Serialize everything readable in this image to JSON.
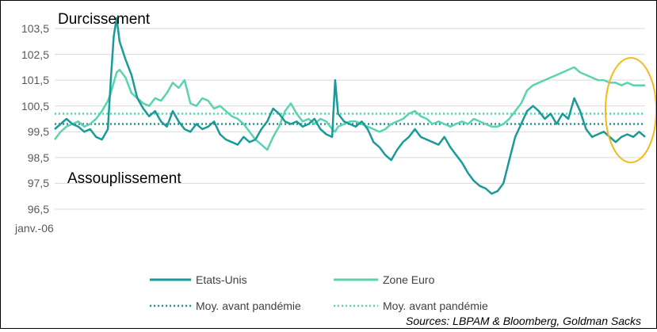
{
  "chart_data": {
    "type": "line",
    "title": "",
    "xlabel": "",
    "ylabel": "",
    "ylim": [
      96.5,
      103.5
    ],
    "yticks": [
      "103,5",
      "102,5",
      "101,5",
      "100,5",
      "99,5",
      "98,5",
      "97,5",
      "96,5"
    ],
    "xticks": [
      "janv.-06"
    ],
    "grid": "horizontal",
    "annotations": [
      "Durcissement",
      "Assouplissement"
    ],
    "highlight": {
      "shape": "ellipse",
      "color": "#F5B91E"
    },
    "source": "Sources: LBPAM & Bloomberg, Goldman Sacks",
    "legend_position": "bottom",
    "series": [
      {
        "name": "Etats-Unis",
        "color": "#1A9A99",
        "style": "solid",
        "x": [
          0,
          2,
          4,
          6,
          8,
          10,
          12,
          14,
          16,
          18,
          19,
          20,
          21,
          22,
          24,
          26,
          28,
          30,
          32,
          34,
          36,
          38,
          40,
          42,
          44,
          46,
          48,
          50,
          52,
          54,
          56,
          58,
          60,
          62,
          64,
          66,
          68,
          70,
          72,
          74,
          76,
          78,
          80,
          82,
          84,
          86,
          88,
          90,
          92,
          94,
          95,
          96,
          98,
          100,
          102,
          104,
          106,
          108,
          110,
          112,
          114,
          116,
          118,
          120,
          122,
          124,
          126,
          128,
          130,
          132,
          134,
          136,
          138,
          140,
          142,
          144,
          146,
          148,
          150,
          152,
          154,
          156,
          158,
          160,
          162,
          164,
          166,
          168,
          170,
          172,
          174,
          176,
          178,
          180,
          182,
          184,
          186,
          188,
          190,
          192,
          194,
          196,
          198,
          200
        ],
        "values": [
          99.6,
          99.8,
          100.0,
          99.8,
          99.7,
          99.5,
          99.6,
          99.3,
          99.2,
          99.6,
          101.5,
          103.2,
          103.9,
          103.0,
          102.3,
          101.7,
          100.8,
          100.4,
          100.1,
          100.3,
          99.9,
          99.7,
          100.3,
          99.9,
          99.6,
          99.5,
          99.8,
          99.6,
          99.7,
          99.9,
          99.4,
          99.2,
          99.1,
          99.0,
          99.3,
          99.1,
          99.2,
          99.6,
          99.9,
          100.4,
          100.2,
          99.9,
          99.8,
          99.9,
          99.7,
          99.8,
          100.0,
          99.6,
          99.4,
          99.3,
          101.5,
          100.2,
          99.9,
          99.8,
          99.7,
          99.9,
          99.6,
          99.1,
          98.9,
          98.6,
          98.4,
          98.8,
          99.1,
          99.3,
          99.6,
          99.3,
          99.2,
          99.1,
          99.0,
          99.3,
          98.9,
          98.6,
          98.3,
          97.9,
          97.6,
          97.4,
          97.3,
          97.1,
          97.2,
          97.5,
          98.4,
          99.3,
          99.8,
          100.3,
          100.5,
          100.3,
          100.0,
          100.2,
          99.8,
          100.2,
          100.0,
          100.8,
          100.3,
          99.6,
          99.3,
          99.4,
          99.5,
          99.3,
          99.1,
          99.3,
          99.4,
          99.3,
          99.5,
          99.3
        ]
      },
      {
        "name": "Zone Euro",
        "color": "#5CD3B0",
        "style": "solid",
        "x": [
          0,
          2,
          4,
          6,
          8,
          10,
          12,
          14,
          16,
          18,
          19,
          20,
          21,
          22,
          24,
          26,
          28,
          30,
          32,
          34,
          36,
          38,
          40,
          42,
          44,
          46,
          48,
          50,
          52,
          54,
          56,
          58,
          60,
          62,
          64,
          66,
          68,
          70,
          72,
          74,
          76,
          78,
          80,
          82,
          84,
          86,
          88,
          90,
          92,
          94,
          95,
          96,
          98,
          100,
          102,
          104,
          106,
          108,
          110,
          112,
          114,
          116,
          118,
          120,
          122,
          124,
          126,
          128,
          130,
          132,
          134,
          136,
          138,
          140,
          142,
          144,
          146,
          148,
          150,
          152,
          154,
          156,
          158,
          160,
          162,
          164,
          166,
          168,
          170,
          172,
          174,
          176,
          178,
          180,
          182,
          184,
          186,
          188,
          190,
          192,
          194,
          196,
          198,
          200
        ],
        "values": [
          99.2,
          99.5,
          99.7,
          99.8,
          99.9,
          99.7,
          99.8,
          100.0,
          100.3,
          100.7,
          101.0,
          101.4,
          101.8,
          101.9,
          101.6,
          101.0,
          100.8,
          100.6,
          100.5,
          100.8,
          100.7,
          101.0,
          101.4,
          101.2,
          101.5,
          100.6,
          100.5,
          100.8,
          100.7,
          100.4,
          100.5,
          100.3,
          100.1,
          100.0,
          99.8,
          99.5,
          99.2,
          99.0,
          98.8,
          99.3,
          99.7,
          100.3,
          100.6,
          100.2,
          99.9,
          100.0,
          99.8,
          100.0,
          99.9,
          99.6,
          99.5,
          99.7,
          99.8,
          99.9,
          99.9,
          99.8,
          99.7,
          99.6,
          99.5,
          99.6,
          99.8,
          99.9,
          100.0,
          100.2,
          100.3,
          100.1,
          100.0,
          99.8,
          99.9,
          99.8,
          99.7,
          99.8,
          99.9,
          99.8,
          100.0,
          99.9,
          99.8,
          99.7,
          99.7,
          99.8,
          100.0,
          100.3,
          100.6,
          101.1,
          101.3,
          101.4,
          101.5,
          101.6,
          101.7,
          101.8,
          101.9,
          102.0,
          101.8,
          101.7,
          101.6,
          101.5,
          101.5,
          101.4,
          101.4,
          101.3,
          101.4,
          101.3,
          101.3,
          101.3
        ]
      },
      {
        "name": "Moy. avant pandémie",
        "color": "#1A9A99",
        "style": "dotted",
        "constant": 99.8
      },
      {
        "name": "Moy. avant pandémie",
        "color": "#5CD3B0",
        "style": "dotted",
        "constant": 100.2
      }
    ]
  }
}
